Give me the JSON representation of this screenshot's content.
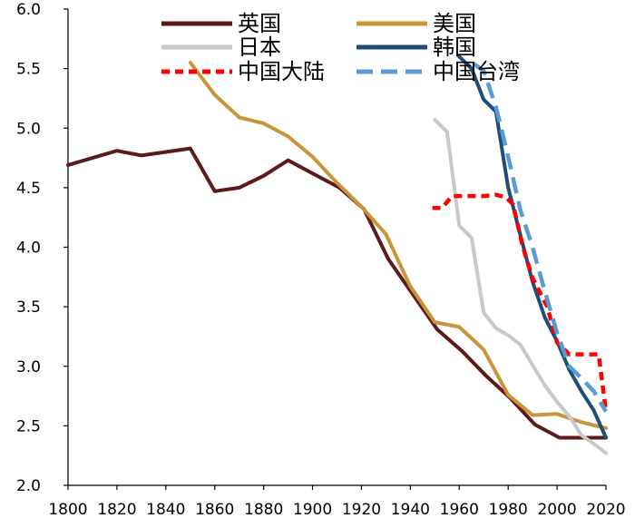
{
  "chart_data": {
    "type": "line",
    "title": "",
    "xlabel": "",
    "ylabel": "",
    "xlim": [
      1800,
      2020
    ],
    "ylim": [
      2.0,
      6.0
    ],
    "x_ticks": [
      "1800",
      "1820",
      "1840",
      "1860",
      "1880",
      "1900",
      "1920",
      "1940",
      "1960",
      "1980",
      "2000",
      "2020"
    ],
    "y_ticks": [
      "2.0",
      "2.5",
      "3.0",
      "3.5",
      "4.0",
      "4.5",
      "5.0",
      "5.5",
      "6.0"
    ],
    "grid": false,
    "legend_position": "top-center",
    "series": [
      {
        "name": "英国",
        "color": "#5c1a1a",
        "style": "solid",
        "points": [
          [
            1800,
            4.69
          ],
          [
            1820,
            4.81
          ],
          [
            1830,
            4.77
          ],
          [
            1850,
            4.83
          ],
          [
            1860,
            4.47
          ],
          [
            1870,
            4.5
          ],
          [
            1880,
            4.6
          ],
          [
            1890,
            4.73
          ],
          [
            1900,
            4.62
          ],
          [
            1911,
            4.5
          ],
          [
            1921,
            4.32
          ],
          [
            1931,
            3.9
          ],
          [
            1951,
            3.31
          ],
          [
            1961,
            3.13
          ],
          [
            1971,
            2.92
          ],
          [
            1981,
            2.73
          ],
          [
            1991,
            2.51
          ],
          [
            2001,
            2.4
          ],
          [
            2011,
            2.4
          ],
          [
            2020,
            2.4
          ]
        ]
      },
      {
        "name": "美国",
        "color": "#c9953a",
        "style": "solid",
        "points": [
          [
            1850,
            5.55
          ],
          [
            1860,
            5.28
          ],
          [
            1870,
            5.09
          ],
          [
            1880,
            5.04
          ],
          [
            1890,
            4.93
          ],
          [
            1900,
            4.76
          ],
          [
            1910,
            4.54
          ],
          [
            1920,
            4.34
          ],
          [
            1930,
            4.11
          ],
          [
            1940,
            3.67
          ],
          [
            1950,
            3.37
          ],
          [
            1960,
            3.33
          ],
          [
            1970,
            3.14
          ],
          [
            1980,
            2.76
          ],
          [
            1990,
            2.59
          ],
          [
            2000,
            2.6
          ],
          [
            2010,
            2.53
          ],
          [
            2020,
            2.48
          ]
        ]
      },
      {
        "name": "日本",
        "color": "#c8c8c8",
        "style": "solid",
        "points": [
          [
            1950,
            5.07
          ],
          [
            1955,
            4.97
          ],
          [
            1960,
            4.18
          ],
          [
            1965,
            4.08
          ],
          [
            1970,
            3.45
          ],
          [
            1975,
            3.32
          ],
          [
            1980,
            3.26
          ],
          [
            1985,
            3.18
          ],
          [
            1990,
            3.01
          ],
          [
            1995,
            2.84
          ],
          [
            2000,
            2.7
          ],
          [
            2005,
            2.58
          ],
          [
            2010,
            2.42
          ],
          [
            2015,
            2.35
          ],
          [
            2020,
            2.27
          ]
        ]
      },
      {
        "name": "韩国",
        "color": "#1e4d78",
        "style": "solid",
        "points": [
          [
            1960,
            5.6
          ],
          [
            1965,
            5.5
          ],
          [
            1970,
            5.24
          ],
          [
            1975,
            5.14
          ],
          [
            1980,
            4.5
          ],
          [
            1985,
            4.1
          ],
          [
            1990,
            3.71
          ],
          [
            1995,
            3.41
          ],
          [
            2000,
            3.21
          ],
          [
            2005,
            2.97
          ],
          [
            2010,
            2.79
          ],
          [
            2015,
            2.63
          ],
          [
            2020,
            2.4
          ]
        ]
      },
      {
        "name": "中国大陆",
        "color": "#ff0000",
        "style": "dotted",
        "points": [
          [
            1949,
            4.33
          ],
          [
            1953,
            4.33
          ],
          [
            1957,
            4.43
          ],
          [
            1965,
            4.43
          ],
          [
            1970,
            4.43
          ],
          [
            1975,
            4.44
          ],
          [
            1979,
            4.42
          ],
          [
            1982,
            4.36
          ],
          [
            1986,
            4.0
          ],
          [
            1990,
            3.74
          ],
          [
            1996,
            3.5
          ],
          [
            2000,
            3.2
          ],
          [
            2005,
            3.1
          ],
          [
            2010,
            3.1
          ],
          [
            2015,
            3.1
          ],
          [
            2017,
            3.1
          ],
          [
            2020,
            2.62
          ]
        ]
      },
      {
        "name": "中国台湾",
        "color": "#5b9bd5",
        "style": "dashed",
        "points": [
          [
            1966,
            5.54
          ],
          [
            1970,
            5.48
          ],
          [
            1975,
            5.18
          ],
          [
            1980,
            4.76
          ],
          [
            1985,
            4.31
          ],
          [
            1990,
            4.0
          ],
          [
            1995,
            3.63
          ],
          [
            2000,
            3.28
          ],
          [
            2005,
            3.0
          ],
          [
            2010,
            2.9
          ],
          [
            2015,
            2.79
          ],
          [
            2020,
            2.62
          ]
        ]
      }
    ]
  }
}
